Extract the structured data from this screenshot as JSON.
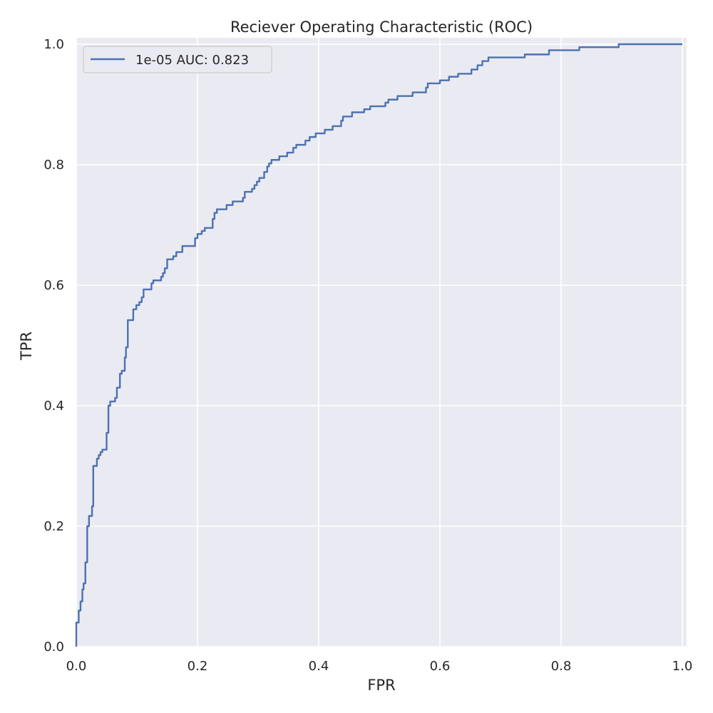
{
  "chart_data": {
    "type": "line",
    "title": "Reciever Operating Characteristic (ROC)",
    "xlabel": "FPR",
    "ylabel": "TPR",
    "xlim": [
      0,
      1
    ],
    "ylim": [
      0,
      1
    ],
    "x_ticks": [
      "0.0",
      "0.2",
      "0.4",
      "0.6",
      "0.8",
      "1.0"
    ],
    "y_ticks": [
      "0.0",
      "0.2",
      "0.4",
      "0.6",
      "0.8",
      "1.0"
    ],
    "grid": true,
    "legend_position": "top-left",
    "series": [
      {
        "name": "1e-05 AUC: 0.823",
        "color": "#4c72b0",
        "step": true,
        "points": [
          [
            0.0,
            0.0
          ],
          [
            0.0,
            0.04
          ],
          [
            0.004,
            0.04
          ],
          [
            0.004,
            0.06
          ],
          [
            0.007,
            0.06
          ],
          [
            0.007,
            0.075
          ],
          [
            0.01,
            0.075
          ],
          [
            0.01,
            0.095
          ],
          [
            0.012,
            0.095
          ],
          [
            0.012,
            0.105
          ],
          [
            0.015,
            0.105
          ],
          [
            0.015,
            0.14
          ],
          [
            0.018,
            0.14
          ],
          [
            0.018,
            0.2
          ],
          [
            0.021,
            0.2
          ],
          [
            0.021,
            0.217
          ],
          [
            0.026,
            0.217
          ],
          [
            0.026,
            0.233
          ],
          [
            0.028,
            0.233
          ],
          [
            0.028,
            0.3
          ],
          [
            0.034,
            0.3
          ],
          [
            0.034,
            0.312
          ],
          [
            0.037,
            0.312
          ],
          [
            0.037,
            0.318
          ],
          [
            0.04,
            0.318
          ],
          [
            0.04,
            0.323
          ],
          [
            0.043,
            0.323
          ],
          [
            0.043,
            0.327
          ],
          [
            0.05,
            0.327
          ],
          [
            0.05,
            0.355
          ],
          [
            0.053,
            0.355
          ],
          [
            0.053,
            0.4
          ],
          [
            0.056,
            0.4
          ],
          [
            0.056,
            0.407
          ],
          [
            0.064,
            0.407
          ],
          [
            0.064,
            0.413
          ],
          [
            0.067,
            0.413
          ],
          [
            0.067,
            0.43
          ],
          [
            0.072,
            0.43
          ],
          [
            0.072,
            0.453
          ],
          [
            0.075,
            0.453
          ],
          [
            0.075,
            0.458
          ],
          [
            0.08,
            0.458
          ],
          [
            0.08,
            0.48
          ],
          [
            0.082,
            0.48
          ],
          [
            0.082,
            0.497
          ],
          [
            0.085,
            0.497
          ],
          [
            0.085,
            0.542
          ],
          [
            0.094,
            0.542
          ],
          [
            0.094,
            0.56
          ],
          [
            0.099,
            0.56
          ],
          [
            0.099,
            0.567
          ],
          [
            0.104,
            0.567
          ],
          [
            0.104,
            0.572
          ],
          [
            0.108,
            0.572
          ],
          [
            0.108,
            0.58
          ],
          [
            0.111,
            0.58
          ],
          [
            0.111,
            0.593
          ],
          [
            0.124,
            0.593
          ],
          [
            0.124,
            0.603
          ],
          [
            0.127,
            0.603
          ],
          [
            0.127,
            0.608
          ],
          [
            0.14,
            0.608
          ],
          [
            0.14,
            0.614
          ],
          [
            0.143,
            0.614
          ],
          [
            0.143,
            0.62
          ],
          [
            0.146,
            0.62
          ],
          [
            0.146,
            0.628
          ],
          [
            0.15,
            0.628
          ],
          [
            0.15,
            0.643
          ],
          [
            0.16,
            0.643
          ],
          [
            0.16,
            0.648
          ],
          [
            0.165,
            0.648
          ],
          [
            0.165,
            0.655
          ],
          [
            0.175,
            0.655
          ],
          [
            0.175,
            0.665
          ],
          [
            0.196,
            0.665
          ],
          [
            0.196,
            0.678
          ],
          [
            0.2,
            0.678
          ],
          [
            0.2,
            0.685
          ],
          [
            0.207,
            0.685
          ],
          [
            0.207,
            0.69
          ],
          [
            0.212,
            0.69
          ],
          [
            0.212,
            0.695
          ],
          [
            0.225,
            0.695
          ],
          [
            0.225,
            0.71
          ],
          [
            0.228,
            0.71
          ],
          [
            0.228,
            0.72
          ],
          [
            0.232,
            0.72
          ],
          [
            0.232,
            0.726
          ],
          [
            0.248,
            0.726
          ],
          [
            0.248,
            0.733
          ],
          [
            0.258,
            0.733
          ],
          [
            0.258,
            0.739
          ],
          [
            0.275,
            0.739
          ],
          [
            0.275,
            0.745
          ],
          [
            0.278,
            0.745
          ],
          [
            0.278,
            0.755
          ],
          [
            0.29,
            0.755
          ],
          [
            0.29,
            0.76
          ],
          [
            0.294,
            0.76
          ],
          [
            0.294,
            0.766
          ],
          [
            0.298,
            0.766
          ],
          [
            0.298,
            0.772
          ],
          [
            0.302,
            0.772
          ],
          [
            0.302,
            0.778
          ],
          [
            0.31,
            0.778
          ],
          [
            0.31,
            0.788
          ],
          [
            0.315,
            0.788
          ],
          [
            0.315,
            0.797
          ],
          [
            0.318,
            0.797
          ],
          [
            0.318,
            0.802
          ],
          [
            0.322,
            0.802
          ],
          [
            0.322,
            0.808
          ],
          [
            0.335,
            0.808
          ],
          [
            0.335,
            0.814
          ],
          [
            0.348,
            0.814
          ],
          [
            0.348,
            0.82
          ],
          [
            0.358,
            0.82
          ],
          [
            0.358,
            0.828
          ],
          [
            0.363,
            0.828
          ],
          [
            0.363,
            0.833
          ],
          [
            0.378,
            0.833
          ],
          [
            0.378,
            0.84
          ],
          [
            0.385,
            0.84
          ],
          [
            0.385,
            0.846
          ],
          [
            0.395,
            0.846
          ],
          [
            0.395,
            0.852
          ],
          [
            0.41,
            0.852
          ],
          [
            0.41,
            0.858
          ],
          [
            0.423,
            0.858
          ],
          [
            0.423,
            0.864
          ],
          [
            0.437,
            0.864
          ],
          [
            0.437,
            0.873
          ],
          [
            0.44,
            0.873
          ],
          [
            0.44,
            0.88
          ],
          [
            0.455,
            0.88
          ],
          [
            0.455,
            0.887
          ],
          [
            0.475,
            0.887
          ],
          [
            0.475,
            0.892
          ],
          [
            0.485,
            0.892
          ],
          [
            0.485,
            0.897
          ],
          [
            0.51,
            0.897
          ],
          [
            0.51,
            0.903
          ],
          [
            0.515,
            0.903
          ],
          [
            0.515,
            0.908
          ],
          [
            0.53,
            0.908
          ],
          [
            0.53,
            0.914
          ],
          [
            0.555,
            0.914
          ],
          [
            0.555,
            0.92
          ],
          [
            0.577,
            0.92
          ],
          [
            0.577,
            0.928
          ],
          [
            0.58,
            0.928
          ],
          [
            0.58,
            0.935
          ],
          [
            0.6,
            0.935
          ],
          [
            0.6,
            0.94
          ],
          [
            0.615,
            0.94
          ],
          [
            0.615,
            0.946
          ],
          [
            0.63,
            0.946
          ],
          [
            0.63,
            0.951
          ],
          [
            0.652,
            0.951
          ],
          [
            0.652,
            0.958
          ],
          [
            0.662,
            0.958
          ],
          [
            0.662,
            0.965
          ],
          [
            0.67,
            0.965
          ],
          [
            0.67,
            0.972
          ],
          [
            0.68,
            0.972
          ],
          [
            0.68,
            0.978
          ],
          [
            0.74,
            0.978
          ],
          [
            0.74,
            0.983
          ],
          [
            0.78,
            0.983
          ],
          [
            0.78,
            0.99
          ],
          [
            0.83,
            0.99
          ],
          [
            0.83,
            0.995
          ],
          [
            0.895,
            0.995
          ],
          [
            0.895,
            1.0
          ],
          [
            1.0,
            1.0
          ]
        ]
      }
    ]
  }
}
